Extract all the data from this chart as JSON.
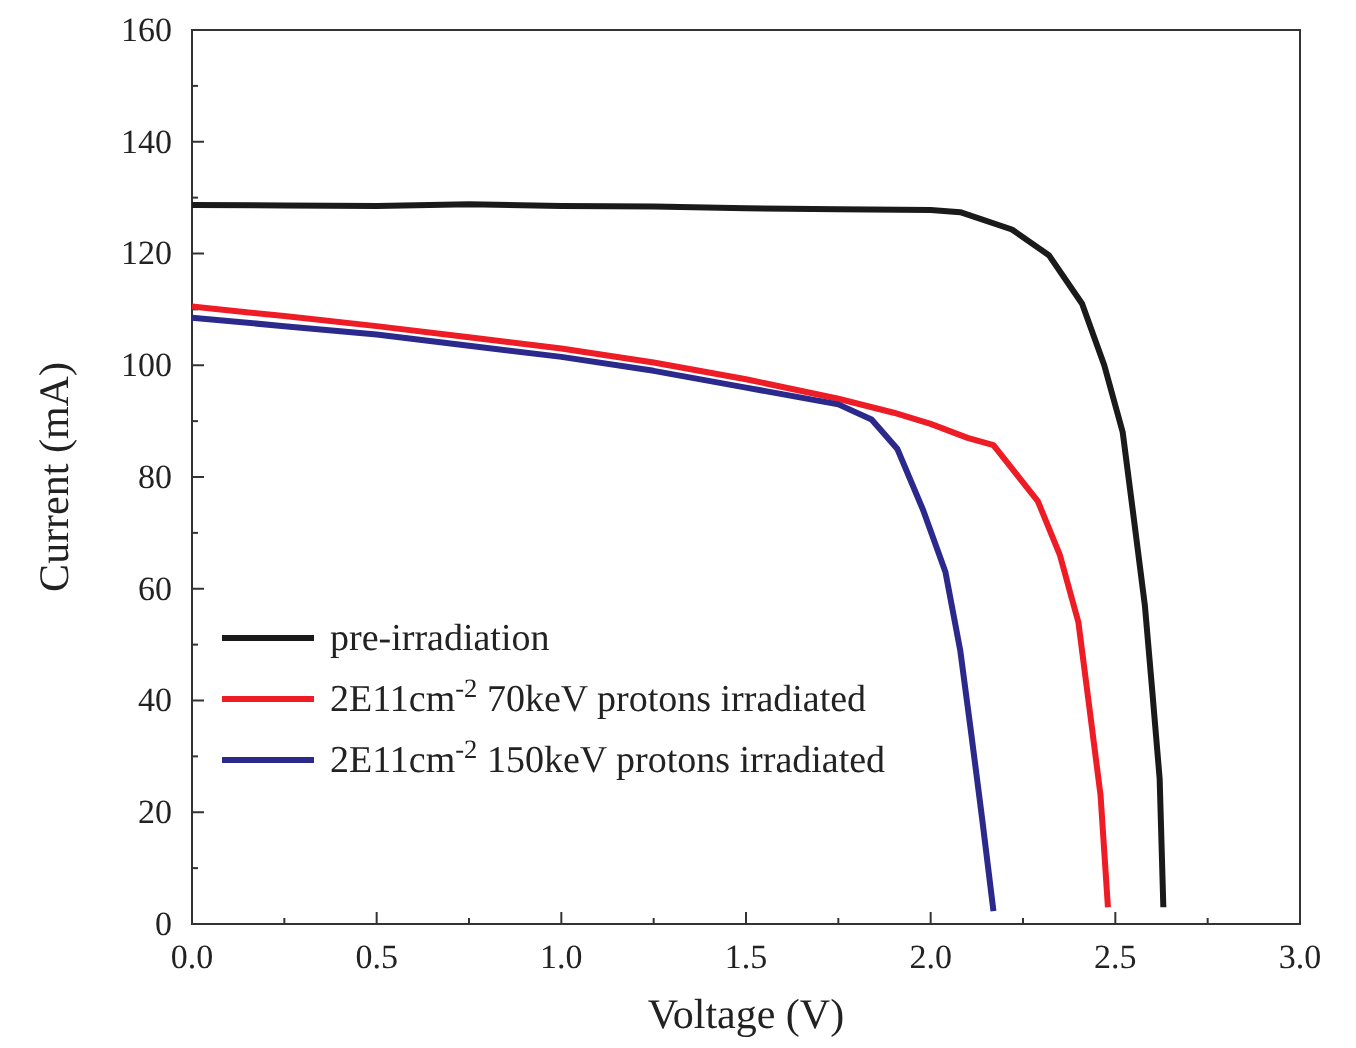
{
  "chart_data": {
    "type": "line",
    "xlabel": "Voltage (V)",
    "ylabel": "Current (mA)",
    "xlim": [
      0,
      3
    ],
    "ylim": [
      0,
      160
    ],
    "xticks": [
      {
        "value": 0,
        "label": "0.0"
      },
      {
        "value": 0.25,
        "label": null
      },
      {
        "value": 0.5,
        "label": "0.5"
      },
      {
        "value": 0.75,
        "label": null
      },
      {
        "value": 1,
        "label": "1.0"
      },
      {
        "value": 1.25,
        "label": null
      },
      {
        "value": 1.5,
        "label": "1.5"
      },
      {
        "value": 1.75,
        "label": null
      },
      {
        "value": 2,
        "label": "2.0"
      },
      {
        "value": 2.25,
        "label": null
      },
      {
        "value": 2.5,
        "label": "2.5"
      },
      {
        "value": 2.75,
        "label": null
      },
      {
        "value": 3,
        "label": "3.0"
      }
    ],
    "yticks": [
      0,
      {
        "value": 10,
        "label": null
      },
      20,
      {
        "value": 30,
        "label": null
      },
      40,
      {
        "value": 50,
        "label": null
      },
      60,
      {
        "value": 70,
        "label": null
      },
      80,
      {
        "value": 90,
        "label": null
      },
      100,
      {
        "value": 110,
        "label": null
      },
      120,
      {
        "value": 130,
        "label": null
      },
      140,
      {
        "value": 150,
        "label": null
      },
      160
    ],
    "legend": "bottom left",
    "grid": false,
    "marker": "none",
    "line_style": "solid",
    "series": [
      {
        "name": "pre-irradiation",
        "color": "#1a1a1a",
        "x": [
          0,
          0.25,
          0.5,
          0.75,
          1.0,
          1.25,
          1.5,
          1.75,
          2.0,
          2.08,
          2.22,
          2.32,
          2.41,
          2.47,
          2.52,
          2.55,
          2.58,
          2.6,
          2.62,
          2.63
        ],
        "values": [
          128.7,
          128.6,
          128.5,
          128.8,
          128.5,
          128.4,
          128.1,
          127.9,
          127.8,
          127.4,
          124.3,
          119.7,
          111,
          100,
          88,
          72.6,
          57,
          41.7,
          26,
          3
        ]
      },
      {
        "name": "2E11cm$^{-2}$  70keV protons irradiated",
        "color": "#ee1c25",
        "x": [
          0,
          0.25,
          0.5,
          0.75,
          1.0,
          1.25,
          1.5,
          1.75,
          1.9,
          2.0,
          2.1,
          2.17,
          2.29,
          2.35,
          2.4,
          2.43,
          2.46,
          2.48
        ],
        "values": [
          110.5,
          108.8,
          107,
          105,
          103,
          100.5,
          97.5,
          94,
          91.5,
          89.5,
          87,
          85.7,
          75.7,
          66,
          54,
          38.6,
          23,
          3
        ]
      },
      {
        "name": "2E11cm$^{-2}$ 150keV protons irradiated",
        "color": "#2b2a8c",
        "x": [
          0,
          0.25,
          0.5,
          0.75,
          1.0,
          1.25,
          1.5,
          1.75,
          1.84,
          1.91,
          1.98,
          2.04,
          2.08,
          2.11,
          2.14,
          2.17
        ],
        "values": [
          108.5,
          107,
          105.5,
          103.5,
          101.5,
          99,
          96,
          93,
          90.3,
          85,
          74,
          63,
          49,
          34,
          18.5,
          2.3
        ]
      }
    ]
  }
}
